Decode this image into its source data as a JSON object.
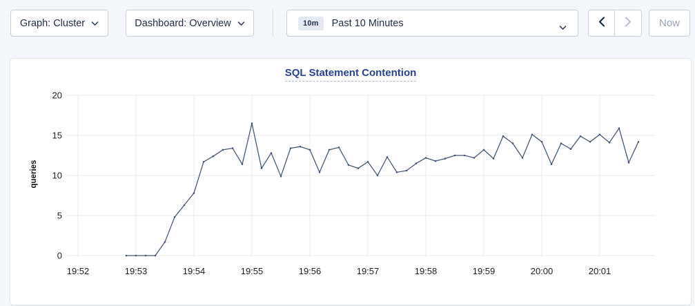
{
  "toolbar": {
    "graph_dropdown": {
      "label": "Graph: Cluster"
    },
    "dashboard_dropdown": {
      "label": "Dashboard: Overview"
    },
    "time_picker": {
      "badge": "10m",
      "label": "Past 10 Minutes"
    },
    "now_button": {
      "label": "Now"
    }
  },
  "chart_data": {
    "type": "line",
    "title": "SQL Statement Contention",
    "xlabel": "",
    "ylabel": "queries",
    "ylim": [
      0,
      20
    ],
    "yticks": [
      0,
      5,
      10,
      15,
      20
    ],
    "xtick_labels": [
      "19:52",
      "19:53",
      "19:54",
      "19:55",
      "19:56",
      "19:57",
      "19:58",
      "19:59",
      "20:00",
      "20:01"
    ],
    "grid": true,
    "legend": "none",
    "line_color": "#475872",
    "series": [
      {
        "name": "queries",
        "times": [
          "19:52:50",
          "19:53:00",
          "19:53:10",
          "19:53:20",
          "19:53:30",
          "19:53:40",
          "19:53:50",
          "19:54:00",
          "19:54:10",
          "19:54:20",
          "19:54:30",
          "19:54:40",
          "19:54:50",
          "19:55:00",
          "19:55:10",
          "19:55:20",
          "19:55:30",
          "19:55:40",
          "19:55:50",
          "19:56:00",
          "19:56:10",
          "19:56:20",
          "19:56:30",
          "19:56:40",
          "19:56:50",
          "19:57:00",
          "19:57:10",
          "19:57:20",
          "19:57:30",
          "19:57:40",
          "19:57:50",
          "19:58:00",
          "19:58:10",
          "19:58:20",
          "19:58:30",
          "19:58:40",
          "19:58:50",
          "19:59:00",
          "19:59:10",
          "19:59:20",
          "19:59:30",
          "19:59:40",
          "19:59:50",
          "20:00:00",
          "20:00:10",
          "20:00:20",
          "20:00:30",
          "20:00:40",
          "20:00:50",
          "20:01:00",
          "20:01:10",
          "20:01:20",
          "20:01:30",
          "20:01:40"
        ],
        "values": [
          0,
          0,
          0,
          0,
          1.7,
          4.8,
          6.3,
          7.8,
          11.7,
          12.4,
          13.2,
          13.4,
          11.4,
          16.5,
          10.9,
          12.8,
          9.9,
          13.4,
          13.6,
          13.2,
          10.4,
          13.2,
          13.5,
          11.3,
          10.9,
          11.7,
          10.0,
          12.3,
          10.4,
          10.6,
          11.5,
          12.2,
          11.8,
          12.1,
          12.5,
          12.5,
          12.2,
          13.2,
          12.1,
          14.9,
          14.0,
          12.2,
          15.1,
          14.2,
          11.4,
          14.0,
          13.3,
          14.9,
          14.2,
          15.1,
          14.1,
          15.9,
          11.6,
          14.2
        ]
      }
    ]
  }
}
